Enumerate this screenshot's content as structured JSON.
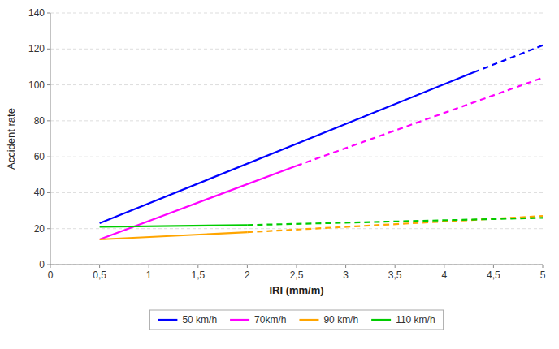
{
  "chart_data": {
    "type": "line",
    "title": "",
    "xlabel": "IRI (mm/m)",
    "ylabel": "Accident rate",
    "xlim": [
      0,
      5
    ],
    "ylim": [
      0,
      140
    ],
    "xticks": [
      0,
      {
        "value": 0.5,
        "label": "0,5"
      },
      1,
      {
        "value": 1.5,
        "label": "1,5"
      },
      2,
      {
        "value": 2.5,
        "label": "2,5"
      },
      3,
      {
        "value": 3.5,
        "label": "3,5"
      },
      4,
      {
        "value": 4.5,
        "label": "4,5"
      },
      5
    ],
    "yticks": [
      0,
      20,
      40,
      60,
      80,
      100,
      120,
      140
    ],
    "grid": true,
    "legend": "bottom",
    "series": [
      {
        "name": "50 km/h",
        "color": "#0000FF",
        "line_style": "solid",
        "x": [
          0.5,
          4.3
        ],
        "values": [
          23,
          107
        ]
      },
      {
        "name": "50 km/h",
        "color": "#0000FF",
        "line_style": "dashed",
        "x": [
          4.3,
          5.0
        ],
        "values": [
          107,
          122
        ]
      },
      {
        "name": "70km/h",
        "color": "#FF00FF",
        "line_style": "solid",
        "x": [
          0.5,
          2.5
        ],
        "values": [
          14,
          55
        ]
      },
      {
        "name": "70km/h",
        "color": "#FF00FF",
        "line_style": "dashed",
        "x": [
          2.5,
          5.0
        ],
        "values": [
          55,
          104
        ]
      },
      {
        "name": "90 km/h",
        "color": "#FFA500",
        "line_style": "solid",
        "x": [
          0.5,
          2.0
        ],
        "values": [
          14,
          18
        ]
      },
      {
        "name": "90 km/h",
        "color": "#FFA500",
        "line_style": "dashed",
        "x": [
          2.0,
          5.0
        ],
        "values": [
          18,
          27
        ]
      },
      {
        "name": "110 km/h",
        "color": "#00CC00",
        "line_style": "solid",
        "x": [
          0.5,
          2.0
        ],
        "values": [
          21,
          22
        ]
      },
      {
        "name": "110 km/h",
        "color": "#00CC00",
        "line_style": "dashed",
        "x": [
          2.0,
          5.0
        ],
        "values": [
          22,
          26
        ]
      }
    ]
  }
}
